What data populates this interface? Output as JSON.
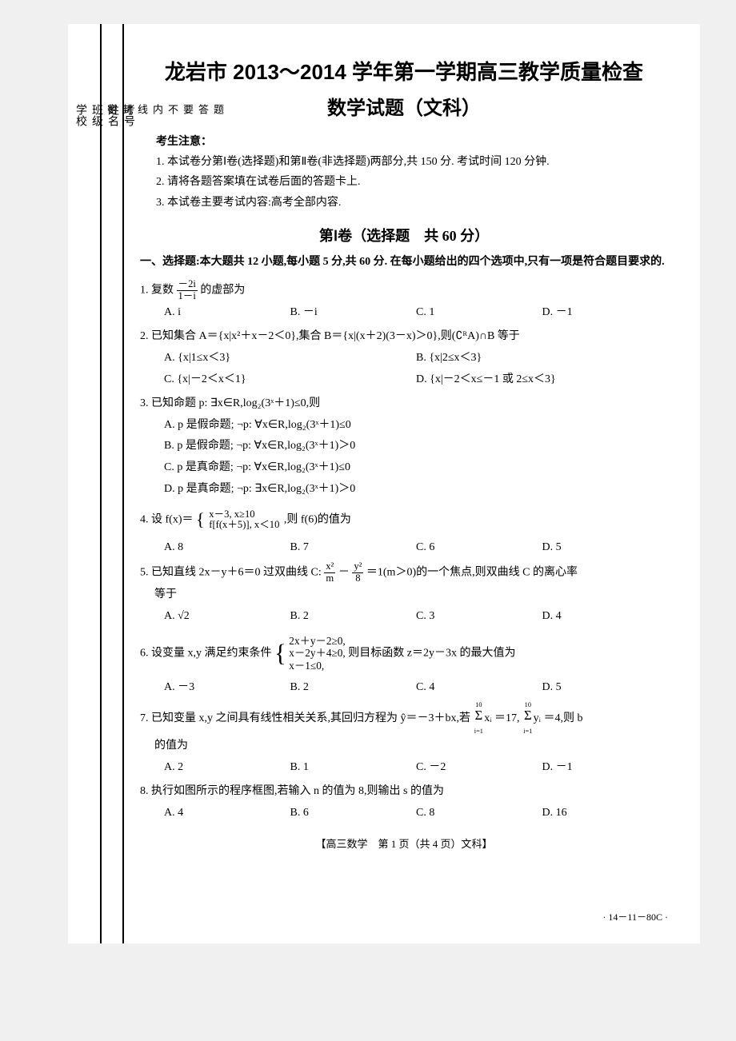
{
  "header": {
    "title": "龙岩市 2013～2014 学年第一学期高三教学质量检查",
    "subtitle": "数学试题（文科）"
  },
  "notice": {
    "title": "考生注意：",
    "lines": [
      "1. 本试卷分第Ⅰ卷(选择题)和第Ⅱ卷(非选择题)两部分,共 150 分. 考试时间 120 分钟.",
      "2. 请将各题答案填在试卷后面的答题卡上.",
      "3. 本试卷主要考试内容:高考全部内容."
    ]
  },
  "binding": {
    "outer": [
      "考号",
      "姓名",
      "班级",
      "学校"
    ],
    "inner": [
      "题",
      "答",
      "要",
      "不",
      "内",
      "线",
      "封",
      "密"
    ]
  },
  "section1": {
    "title": "第Ⅰ卷（选择题　共 60 分）",
    "desc": "一、选择题:本大题共 12 小题,每小题 5 分,共 60 分. 在每小题给出的四个选项中,只有一项是符合题目要求的."
  },
  "q1": {
    "stem": "1. 复数",
    "stem2": "的虚部为",
    "optA": "A. i",
    "optB": "B. －i",
    "optC": "C. 1",
    "optD": "D. －1"
  },
  "q2": {
    "stem": "2. 已知集合 A＝{x|x²＋x－2＜0},集合 B＝{x|(x＋2)(3－x)＞0},则(∁ᴿA)∩B 等于",
    "optA": "A. {x|1≤x＜3}",
    "optB": "B. {x|2≤x＜3}",
    "optC": "C. {x|－2＜x＜1}",
    "optD": "D. {x|－2＜x≤－1 或 2≤x＜3}"
  },
  "q3": {
    "stem": "3. 已知命题 p: ∃x∈R,log₂(3ˣ＋1)≤0,则",
    "optA": "A. p 是假命题; ¬p: ∀x∈R,log₂(3ˣ＋1)≤0",
    "optB": "B. p 是假命题; ¬p: ∀x∈R,log₂(3ˣ＋1)＞0",
    "optC": "C. p 是真命题; ¬p: ∀x∈R,log₂(3ˣ＋1)≤0",
    "optD": "D. p 是真命题; ¬p: ∃x∈R,log₂(3ˣ＋1)＞0"
  },
  "q4": {
    "stem1": "4. 设 f(x)＝",
    "case1": "x－3, x≥10",
    "case2": "f[f(x＋5)], x＜10",
    "stem2": ",则 f(6)的值为",
    "optA": "A. 8",
    "optB": "B. 7",
    "optC": "C. 6",
    "optD": "D. 5"
  },
  "q5": {
    "stem1": "5. 已知直线 2x－y＋6＝0 过双曲线 C:",
    "stem2": "＝1(m＞0)的一个焦点,则双曲线 C 的离心率",
    "stem3": "等于",
    "optA": "A. √2",
    "optB": "B. 2",
    "optC": "C. 3",
    "optD": "D. 4"
  },
  "q6": {
    "stem1": "6. 设变量 x,y 满足约束条件",
    "c1": "2x＋y－2≥0,",
    "c2": "x－2y＋4≥0,",
    "c3": "x－1≤0,",
    "stem2": "则目标函数 z＝2y－3x 的最大值为",
    "optA": "A. －3",
    "optB": "B. 2",
    "optC": "C. 4",
    "optD": "D. 5"
  },
  "q7": {
    "stem1": "7. 已知变量 x,y 之间具有线性相关关系,其回归方程为 ŷ＝－3＋bx,若",
    "stem2": "＝17,",
    "stem3": "＝4,则 b",
    "stem4": "的值为",
    "optA": "A. 2",
    "optB": "B. 1",
    "optC": "C. －2",
    "optD": "D. －1"
  },
  "q8": {
    "stem": "8. 执行如图所示的程序框图,若输入 n 的值为 8,则输出 s 的值为",
    "optA": "A. 4",
    "optB": "B. 6",
    "optC": "C. 8",
    "optD": "D. 16"
  },
  "footer": {
    "center": "【高三数学　第 1 页（共 4 页）文科】",
    "right": "· 14－11－80C ·"
  }
}
